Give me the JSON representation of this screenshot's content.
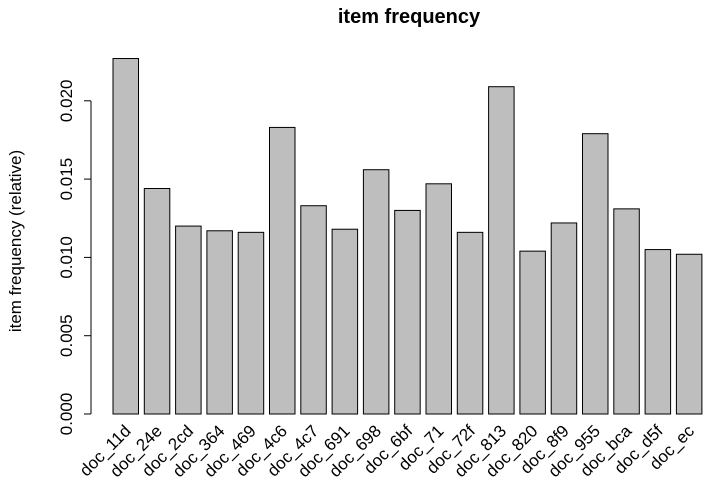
{
  "chart_data": {
    "type": "bar",
    "title": "item frequency",
    "ylabel": "item frequency (relative)",
    "xlabel": "",
    "categories": [
      "doc_11d",
      "doc_24e",
      "doc_2cd",
      "doc_364",
      "doc_469",
      "doc_4c6",
      "doc_4c7",
      "doc_691",
      "doc_698",
      "doc_6bf",
      "doc_71",
      "doc_72f",
      "doc_813",
      "doc_820",
      "doc_8f9",
      "doc_955",
      "doc_bca",
      "doc_d5f",
      "doc_ec"
    ],
    "values": [
      0.0227,
      0.0144,
      0.012,
      0.0117,
      0.0116,
      0.0183,
      0.0133,
      0.0118,
      0.0156,
      0.013,
      0.0147,
      0.0116,
      0.0209,
      0.0104,
      0.0122,
      0.0179,
      0.0131,
      0.0105,
      0.0102
    ],
    "yticks": [
      "0.000",
      "0.005",
      "0.010",
      "0.015",
      "0.020"
    ],
    "ylim": [
      0,
      0.0227
    ],
    "grid": false,
    "colors": {
      "bar_fill": "#bebebe",
      "bar_stroke": "#000000"
    }
  }
}
